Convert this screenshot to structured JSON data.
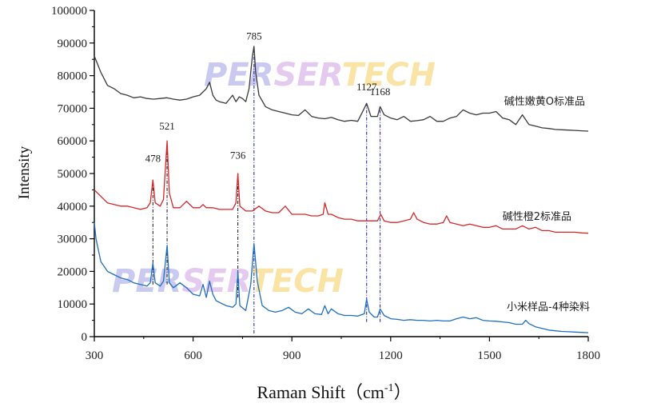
{
  "chart_data": {
    "type": "line",
    "title": "",
    "xlabel": "Raman Shift（cm",
    "xlabel_superscript": "-1",
    "xlabel_close": "）",
    "ylabel": "Intensity",
    "xlim": [
      300,
      1800
    ],
    "ylim": [
      0,
      100000
    ],
    "x_ticks": [
      300,
      600,
      900,
      1200,
      1500,
      1800
    ],
    "y_ticks": [
      0,
      10000,
      20000,
      30000,
      40000,
      50000,
      60000,
      70000,
      80000,
      90000,
      100000
    ],
    "watermark": "PERSERTECH",
    "colors": {
      "top": "#3a3a3a",
      "middle": "#d62728",
      "bottom": "#1f6fbf",
      "ref_top": "#1a1aa6",
      "ref_mid": "#111111"
    },
    "series": [
      {
        "name": "碱性嫩黄O标准品",
        "color": "#3a3a3a",
        "x": [
          300,
          320,
          340,
          360,
          380,
          400,
          420,
          440,
          460,
          480,
          500,
          520,
          540,
          560,
          580,
          600,
          620,
          630,
          640,
          650,
          660,
          670,
          680,
          700,
          720,
          730,
          740,
          750,
          760,
          770,
          780,
          785,
          790,
          800,
          820,
          840,
          860,
          880,
          900,
          920,
          940,
          960,
          980,
          1000,
          1020,
          1040,
          1060,
          1080,
          1100,
          1120,
          1127,
          1140,
          1160,
          1168,
          1180,
          1200,
          1220,
          1240,
          1260,
          1280,
          1300,
          1320,
          1340,
          1360,
          1380,
          1400,
          1420,
          1440,
          1460,
          1480,
          1500,
          1520,
          1540,
          1560,
          1580,
          1600,
          1620,
          1640,
          1660,
          1680,
          1700,
          1720,
          1740,
          1760,
          1780,
          1800
        ],
        "values": [
          86000,
          81000,
          77000,
          76000,
          74500,
          74000,
          73200,
          73500,
          73000,
          72800,
          73000,
          73200,
          72800,
          72500,
          72800,
          73500,
          74000,
          75000,
          76000,
          78000,
          74000,
          72500,
          72000,
          71500,
          74000,
          72000,
          73500,
          73000,
          72000,
          76000,
          86000,
          89000,
          81000,
          74000,
          70500,
          69500,
          69000,
          68500,
          68000,
          67800,
          69500,
          67500,
          67000,
          66800,
          67200,
          66500,
          66000,
          66300,
          66000,
          70000,
          71500,
          67500,
          67500,
          70500,
          68000,
          67000,
          66500,
          67500,
          66000,
          66200,
          66500,
          67500,
          66000,
          66000,
          67000,
          67500,
          69500,
          68500,
          68000,
          68500,
          68500,
          69000,
          67000,
          66500,
          65000,
          68000,
          65000,
          64500,
          64000,
          63800,
          63500,
          63400,
          63300,
          63200,
          63100,
          63000
        ]
      },
      {
        "name": "碱性橙2标准品",
        "color": "#d62728",
        "x": [
          300,
          320,
          340,
          360,
          380,
          400,
          420,
          440,
          460,
          470,
          478,
          485,
          500,
          510,
          521,
          528,
          540,
          560,
          580,
          600,
          620,
          630,
          640,
          660,
          680,
          700,
          720,
          730,
          736,
          742,
          760,
          780,
          800,
          820,
          840,
          860,
          880,
          900,
          920,
          940,
          960,
          980,
          995,
          1000,
          1010,
          1020,
          1040,
          1060,
          1080,
          1100,
          1120,
          1140,
          1160,
          1170,
          1180,
          1200,
          1220,
          1240,
          1260,
          1270,
          1280,
          1300,
          1320,
          1340,
          1360,
          1370,
          1380,
          1400,
          1420,
          1440,
          1460,
          1480,
          1500,
          1520,
          1540,
          1560,
          1580,
          1600,
          1620,
          1640,
          1660,
          1680,
          1700,
          1720,
          1740,
          1760,
          1780,
          1800
        ],
        "values": [
          45000,
          43000,
          41000,
          40500,
          40000,
          40000,
          39500,
          39000,
          39500,
          41000,
          48000,
          41000,
          40000,
          42000,
          60000,
          44000,
          39500,
          39500,
          41500,
          39500,
          39500,
          40500,
          39500,
          39500,
          39000,
          39000,
          39000,
          41000,
          50000,
          40000,
          38500,
          38500,
          40000,
          38500,
          38000,
          38000,
          40000,
          37500,
          37500,
          37500,
          37000,
          37000,
          37500,
          41000,
          37500,
          37500,
          36500,
          36000,
          36000,
          35500,
          35500,
          35500,
          35500,
          37500,
          35500,
          35000,
          35000,
          35500,
          36000,
          38000,
          36000,
          35000,
          34500,
          34500,
          35000,
          37000,
          35000,
          34500,
          34000,
          34500,
          34000,
          33500,
          33500,
          34000,
          33000,
          33000,
          33000,
          34000,
          33000,
          33500,
          32500,
          32500,
          32000,
          32000,
          32000,
          32000,
          31800,
          31700
        ]
      },
      {
        "name": "小米样品-4种染料",
        "color": "#1f6fbf",
        "x": [
          300,
          305,
          320,
          340,
          360,
          380,
          400,
          420,
          440,
          460,
          470,
          478,
          485,
          500,
          510,
          521,
          528,
          540,
          560,
          580,
          600,
          620,
          630,
          640,
          650,
          660,
          670,
          680,
          700,
          720,
          730,
          736,
          742,
          760,
          775,
          785,
          795,
          810,
          830,
          850,
          870,
          890,
          910,
          930,
          950,
          970,
          990,
          1000,
          1010,
          1020,
          1040,
          1060,
          1080,
          1100,
          1120,
          1127,
          1135,
          1150,
          1160,
          1168,
          1180,
          1200,
          1220,
          1240,
          1260,
          1280,
          1300,
          1320,
          1340,
          1360,
          1380,
          1400,
          1420,
          1440,
          1460,
          1480,
          1500,
          1520,
          1540,
          1560,
          1580,
          1600,
          1610,
          1620,
          1640,
          1660,
          1680,
          1700,
          1720,
          1740,
          1760,
          1780,
          1800
        ],
        "values": [
          35000,
          30000,
          23000,
          20000,
          19000,
          18000,
          17500,
          16500,
          16000,
          15500,
          16500,
          22500,
          16500,
          15500,
          17000,
          28000,
          16500,
          15000,
          16500,
          15000,
          13000,
          12500,
          16000,
          12000,
          17000,
          13000,
          11000,
          10500,
          9500,
          9000,
          10000,
          20000,
          9500,
          8000,
          16000,
          28500,
          17000,
          9500,
          8000,
          7500,
          8000,
          9000,
          7500,
          7000,
          8500,
          7000,
          6800,
          9500,
          7000,
          8500,
          7000,
          6500,
          6500,
          6300,
          7000,
          11500,
          7500,
          6000,
          6000,
          8500,
          6500,
          5500,
          5300,
          5000,
          5200,
          5000,
          5000,
          4800,
          5000,
          4800,
          4800,
          5500,
          6000,
          5500,
          5800,
          5000,
          4800,
          4700,
          4500,
          4300,
          3800,
          3800,
          5000,
          4000,
          3000,
          2500,
          2000,
          1800,
          1600,
          1500,
          1400,
          1300,
          1200
        ]
      }
    ],
    "annotations": [
      {
        "label": "785",
        "x": 785,
        "y": 91000,
        "color": "#1a1aa6",
        "from": 1000,
        "to": 89000
      },
      {
        "label": "1127",
        "x": 1127,
        "y": 75500,
        "color": "#1a1aa6",
        "from": 4500,
        "to": 71500
      },
      {
        "label": "1168",
        "x": 1168,
        "y": 74000,
        "color": "#1a1aa6",
        "from": 4500,
        "to": 70500
      },
      {
        "label": "521",
        "x": 521,
        "y": 63500,
        "color": "#111111",
        "from": 16000,
        "to": 60000
      },
      {
        "label": "478",
        "x": 478,
        "y": 53500,
        "color": "#111111",
        "from": 16000,
        "to": 48000
      },
      {
        "label": "736",
        "x": 736,
        "y": 54500,
        "color": "#111111",
        "from": 12000,
        "to": 50000
      }
    ]
  }
}
